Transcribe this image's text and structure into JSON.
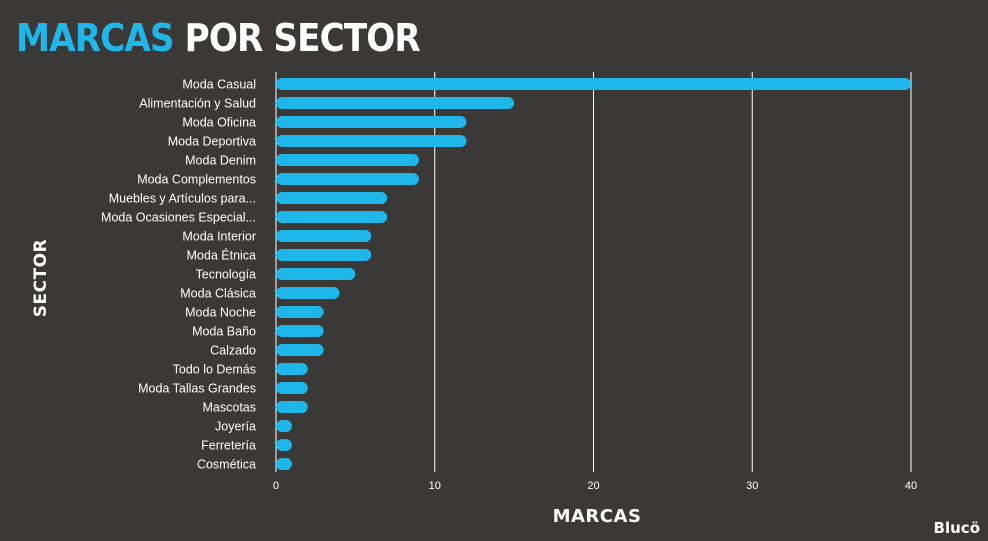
{
  "title": {
    "accent": "MARCAS",
    "rest": "POR SECTOR"
  },
  "logo": "Blucö",
  "colors": {
    "background": "#3a3937",
    "bar": "#1fb6ea",
    "grid": "#ffffff",
    "text": "#ffffff"
  },
  "chart_data": {
    "type": "bar",
    "orientation": "horizontal",
    "xlabel": "MARCAS",
    "ylabel": "SECTOR",
    "xlim": [
      0,
      40
    ],
    "xticks": [
      0,
      10,
      20,
      30,
      40
    ],
    "grid": true,
    "categories": [
      "Moda Casual",
      "Alimentación y Salud",
      "Moda Oficina",
      "Moda Deportiva",
      "Moda Denim",
      "Moda Complementos",
      "Muebles y Artículos para...",
      "Moda Ocasiones Especial...",
      "Moda Interior",
      "Moda Étnica",
      "Tecnología",
      "Moda Clásica",
      "Moda Noche",
      "Moda Baño",
      "Calzado",
      "Todo lo Demás",
      "Moda Tallas Grandes",
      "Mascotas",
      "Joyería",
      "Ferretería",
      "Cosmética"
    ],
    "values": [
      40,
      15,
      12,
      12,
      9,
      9,
      7,
      7,
      6,
      6,
      5,
      4,
      3,
      3,
      3,
      2,
      2,
      2,
      1,
      1,
      1
    ]
  }
}
